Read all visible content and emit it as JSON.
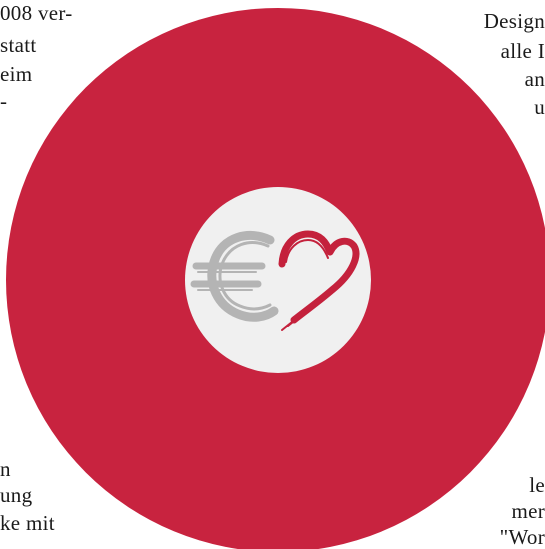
{
  "colors": {
    "disc": "#c8233f",
    "center": "#f0f0f0",
    "euro": "#b4b4b4",
    "heart": "#c4213c"
  },
  "emblem": {
    "icon": "euro-heart-logo"
  },
  "text": {
    "top_left": [
      "008 ver-",
      "statt",
      "eim",
      "-"
    ],
    "top_right": [
      "Design",
      "alle I",
      "an",
      "u"
    ],
    "bottom_left": [
      "n",
      "ung",
      "ke mit"
    ],
    "bottom_right": [
      "le",
      "mer",
      "\"Wor"
    ]
  }
}
